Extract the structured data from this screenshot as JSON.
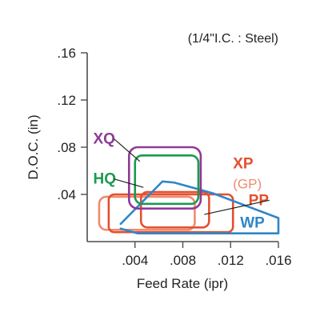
{
  "chart_data": {
    "type": "area",
    "subtitle": "(1/4\"I.C. : Steel)",
    "xlabel": "Feed Rate (ipr)",
    "ylabel": "D.O.C. (in)",
    "xlim": [
      0,
      0.016
    ],
    "ylim": [
      0,
      0.16
    ],
    "x_ticks": [
      0.004,
      0.008,
      0.012,
      0.016
    ],
    "x_tick_labels": [
      ".004",
      ".008",
      ".012",
      ".016"
    ],
    "y_ticks": [
      0.04,
      0.08,
      0.12,
      0.16
    ],
    "y_tick_labels": [
      ".04",
      ".08",
      ".12",
      ".16"
    ],
    "grid": false,
    "series": [
      {
        "name": "XQ",
        "color": "#8e3a97",
        "region": {
          "x": [
            0.0035,
            0.0095
          ],
          "y": [
            0.028,
            0.08
          ]
        },
        "label_point": [
          0.0005,
          0.083
        ],
        "leader_to": [
          0.0044,
          0.068
        ]
      },
      {
        "name": "HQ",
        "color": "#1c9a4f",
        "region": {
          "x": [
            0.004,
            0.0093
          ],
          "y": [
            0.032,
            0.073
          ]
        },
        "label_point": [
          0.0005,
          0.049
        ],
        "leader_to": [
          0.0047,
          0.046
        ]
      },
      {
        "name": "XP",
        "color": "#e4502e",
        "region": {
          "x": [
            0.0045,
            0.0102
          ],
          "y": [
            0.012,
            0.042
          ]
        },
        "label_point": [
          0.0122,
          0.062
        ]
      },
      {
        "name": "(GP)",
        "color": "#ef8b6e",
        "region": {
          "x": [
            0.001,
            0.009
          ],
          "y": [
            0.01,
            0.038
          ]
        },
        "label_point": [
          0.0122,
          0.045
        ]
      },
      {
        "name": "PP",
        "color": "#e4502e",
        "region": {
          "x": [
            0.0018,
            0.0122
          ],
          "y": [
            0.008,
            0.04
          ]
        },
        "label_point": [
          0.0135,
          0.031
        ],
        "leader_to": [
          0.0098,
          0.023
        ]
      },
      {
        "name": "WP",
        "color": "#2f86c8",
        "polygon": [
          [
            0.0028,
            0.015
          ],
          [
            0.0063,
            0.051
          ],
          [
            0.0073,
            0.05
          ],
          [
            0.0105,
            0.041
          ],
          [
            0.016,
            0.02
          ],
          [
            0.016,
            0.007
          ],
          [
            0.0042,
            0.007
          ],
          [
            0.0028,
            0.011
          ]
        ],
        "label_point": [
          0.0128,
          0.012
        ]
      }
    ]
  }
}
